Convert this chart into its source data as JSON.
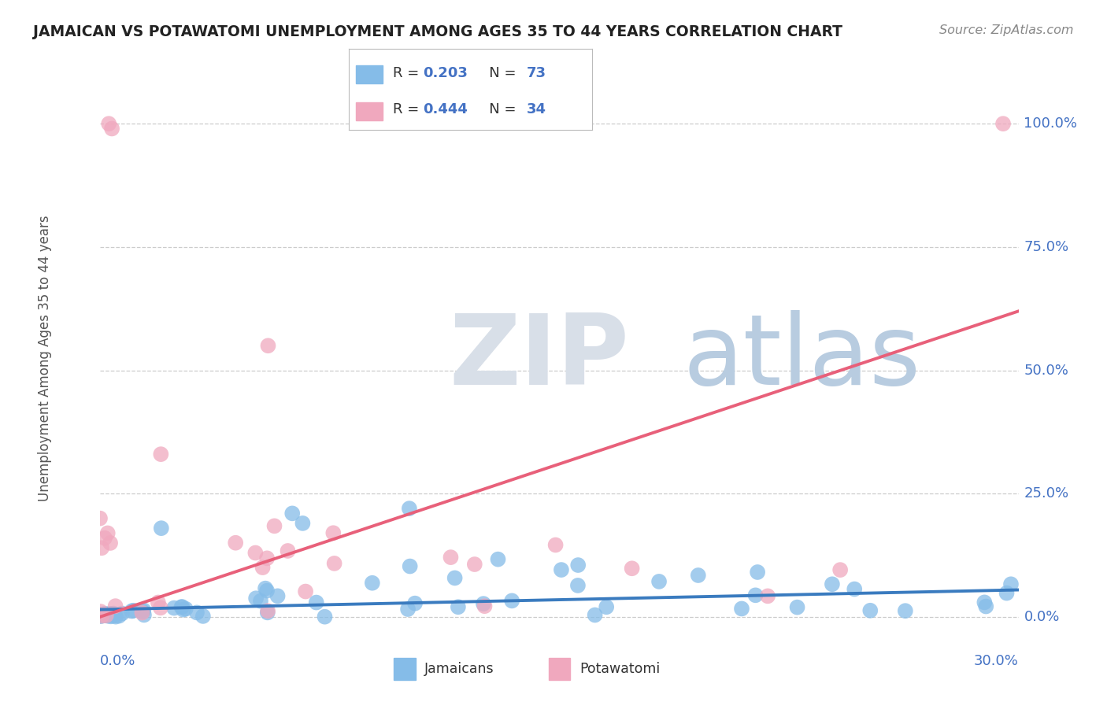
{
  "title": "JAMAICAN VS POTAWATOMI UNEMPLOYMENT AMONG AGES 35 TO 44 YEARS CORRELATION CHART",
  "source": "Source: ZipAtlas.com",
  "ylabel": "Unemployment Among Ages 35 to 44 years",
  "ytick_labels": [
    "0.0%",
    "25.0%",
    "50.0%",
    "75.0%",
    "100.0%"
  ],
  "ytick_values": [
    0.0,
    0.25,
    0.5,
    0.75,
    1.0
  ],
  "xmin": 0.0,
  "xmax": 0.3,
  "ymin": -0.03,
  "ymax": 1.08,
  "jamaican_color": "#85bce8",
  "jamaican_line_color": "#3a7bbf",
  "potawatomi_color": "#f0a8be",
  "potawatomi_line_color": "#e8607a",
  "trend_blue_y0": 0.015,
  "trend_blue_y1": 0.055,
  "trend_pink_y0": 0.0,
  "trend_pink_y1": 0.62,
  "background_color": "#ffffff",
  "grid_color": "#cccccc",
  "title_color": "#222222",
  "axis_label_color": "#4472c4",
  "R_color": "#4472c4",
  "N_color": "#4472c4",
  "legend_R1": "0.203",
  "legend_N1": "73",
  "legend_R2": "0.444",
  "legend_N2": "34",
  "watermark_zip_color": "#d8dfe8",
  "watermark_atlas_color": "#b8cce0"
}
